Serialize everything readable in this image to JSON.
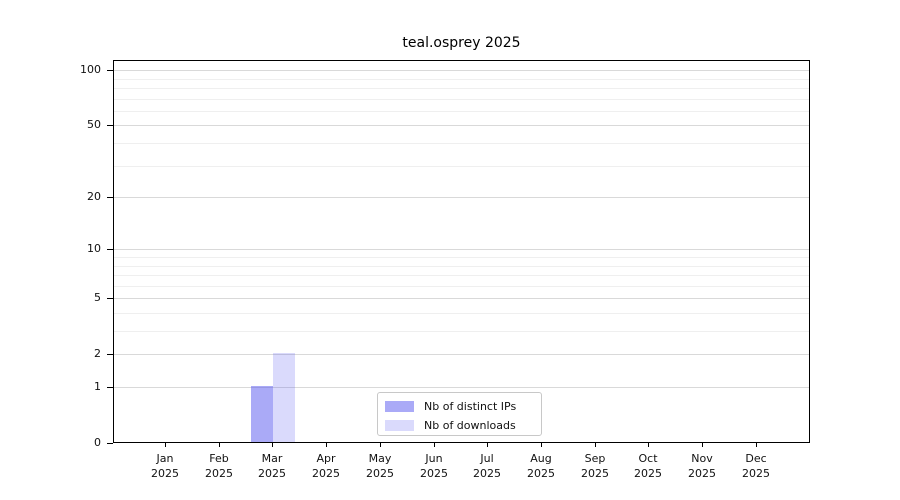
{
  "title": "teal.osprey 2025",
  "chart_data": {
    "type": "bar",
    "title": "teal.osprey 2025",
    "categories": [
      "Jan",
      "Feb",
      "Mar",
      "Apr",
      "May",
      "Jun",
      "Jul",
      "Aug",
      "Sep",
      "Oct",
      "Nov",
      "Dec"
    ],
    "category_year": "2025",
    "series": [
      {
        "name": "Nb of distinct IPs",
        "color": "#5555f080",
        "values": [
          0,
          0,
          1,
          0,
          0,
          0,
          0,
          0,
          0,
          0,
          0,
          0
        ]
      },
      {
        "name": "Nb of downloads",
        "color": "#5555f038",
        "values": [
          0,
          0,
          2,
          0,
          0,
          0,
          0,
          0,
          0,
          0,
          0,
          0
        ]
      }
    ],
    "y_axis": {
      "scale": "log(1+y)",
      "major_ticks": [
        0,
        1,
        2,
        5,
        10,
        20,
        50,
        100
      ],
      "minor_ticks": [
        3,
        4,
        6,
        7,
        8,
        9,
        30,
        40,
        60,
        70,
        80,
        90
      ],
      "ylim": [
        0,
        113
      ]
    },
    "x_axis": {
      "ticks_per_month": 1,
      "label_lines": 2
    },
    "grid": {
      "major_color": "#d9d9d9",
      "minor_color": "#efefef"
    },
    "legend": {
      "position": "lower center",
      "entries": [
        "Nb of distinct IPs",
        "Nb of downloads"
      ]
    },
    "colors": {
      "spine": "#000000",
      "background": "#ffffff",
      "text": "#111111"
    }
  }
}
